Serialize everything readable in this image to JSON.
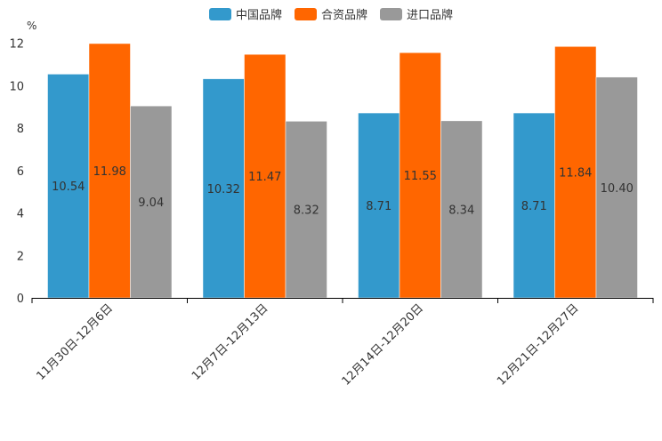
{
  "chart_data": {
    "type": "bar",
    "unit": "%",
    "categories": [
      "11月30日-12月6日",
      "12月7日-12月13日",
      "12月14日-12月20日",
      "12月21日-12月27日"
    ],
    "series": [
      {
        "name": "中国品牌",
        "color": "#3399cc",
        "values": [
          10.54,
          10.32,
          8.71,
          8.71
        ],
        "labels": [
          "10.54",
          "10.32",
          "8.71",
          "8.71"
        ]
      },
      {
        "name": "合资品牌",
        "color": "#ff6600",
        "values": [
          11.98,
          11.47,
          11.55,
          11.84
        ],
        "labels": [
          "11.98",
          "11.47",
          "11.55",
          "11.84"
        ]
      },
      {
        "name": "进口品牌",
        "color": "#999999",
        "values": [
          9.04,
          8.32,
          8.34,
          10.4
        ],
        "labels": [
          "9.04",
          "8.32",
          "8.34",
          "10.40"
        ]
      }
    ],
    "yticks": [
      "0",
      "2",
      "4",
      "6",
      "8",
      "10",
      "12"
    ],
    "ylim": [
      0,
      12
    ],
    "legend_position": "top-center"
  }
}
